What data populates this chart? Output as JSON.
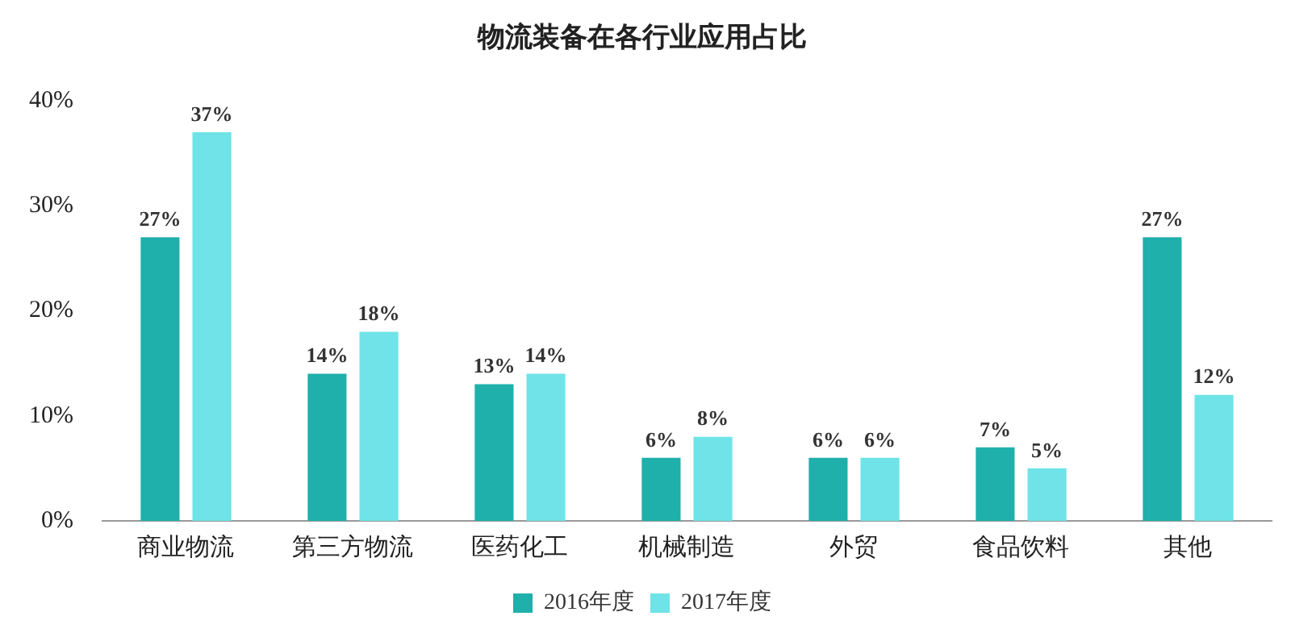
{
  "chart_data": {
    "type": "bar",
    "title": "物流装备在各行业应用占比",
    "categories": [
      "商业物流",
      "第三方物流",
      "医药化工",
      "机械制造",
      "外贸",
      "食品饮料",
      "其他"
    ],
    "series": [
      {
        "name": "2016年度",
        "color": "#1fb0ab",
        "values": [
          27,
          14,
          13,
          6,
          6,
          7,
          27
        ],
        "value_labels": [
          "27%",
          "14%",
          "13%",
          "6%",
          "6%",
          "7%",
          "27%"
        ]
      },
      {
        "name": "2017年度",
        "color": "#6fe3e8",
        "values": [
          37,
          18,
          14,
          8,
          6,
          5,
          12
        ],
        "value_labels": [
          "37%",
          "18%",
          "14%",
          "8%",
          "6%",
          "5%",
          "12%"
        ]
      }
    ],
    "ylim": [
      0,
      40
    ],
    "yticks": [
      {
        "value": 0,
        "label": "0%"
      },
      {
        "value": 10,
        "label": "10%"
      },
      {
        "value": 20,
        "label": "20%"
      },
      {
        "value": 30,
        "label": "30%"
      },
      {
        "value": 40,
        "label": "40%"
      }
    ],
    "grid": false,
    "legend": "bottom"
  }
}
